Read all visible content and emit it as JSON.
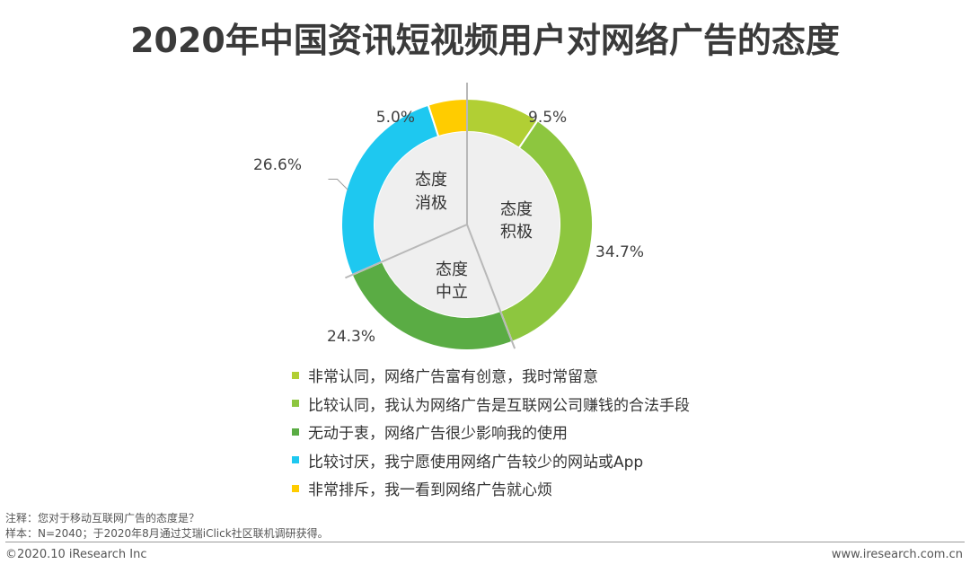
{
  "title": "2020年中国资讯短视频用户对网络广告的态度",
  "chart_data": {
    "type": "pie",
    "title": "2020年中国资讯短视频用户对网络广告的态度",
    "slices": [
      {
        "label": "非常认同，网络广告富有创意，我时常留意",
        "value": 9.5,
        "display": "9.5%",
        "color": "#b1cf34"
      },
      {
        "label": "比较认同，我认为网络广告是互联网公司赚钱的合法手段",
        "value": 34.7,
        "display": "34.7%",
        "color": "#8dc63f"
      },
      {
        "label": "无动于衷，网络广告很少影响我的使用",
        "value": 24.3,
        "display": "24.3%",
        "color": "#5aac44"
      },
      {
        "label": "比较讨厌，我宁愿使用网络广告较少的网站或App",
        "value": 26.6,
        "display": "26.6%",
        "color": "#1ec8f0"
      },
      {
        "label": "非常排斥，我一看到网络广告就心烦",
        "value": 5.0,
        "display": "5.0%",
        "color": "#ffcc00"
      }
    ],
    "groups": [
      {
        "line1": "态度",
        "line2": "积极"
      },
      {
        "line1": "态度",
        "line2": "中立"
      },
      {
        "line1": "态度",
        "line2": "消极"
      }
    ],
    "legend_placement": "bottom"
  },
  "footer": {
    "note": "注释：您对于移动互联网广告的态度是？",
    "sample": "样本：N=2040；于2020年8月通过艾瑞iClick社区联机调研获得。",
    "copyright": "©2020.10 iResearch Inc",
    "website": "www.iresearch.com.cn"
  }
}
